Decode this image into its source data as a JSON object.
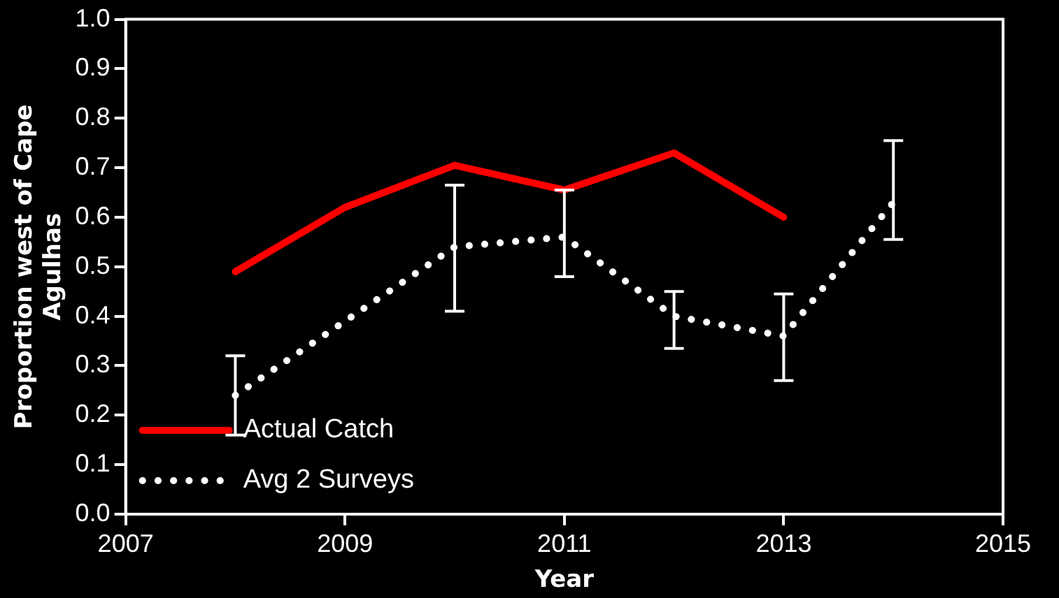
{
  "chart_data": {
    "type": "line",
    "xlabel": "Year",
    "ylabel": "Proportion west of Cape Agulhas",
    "xlim": [
      2007,
      2015
    ],
    "xticks": [
      2007,
      2009,
      2011,
      2013,
      2015
    ],
    "ylim": [
      0,
      1
    ],
    "yticks": [
      {
        "value": 0,
        "label": "0.0"
      },
      0.1,
      0.2,
      0.3,
      0.4,
      0.5,
      0.6,
      0.7,
      0.8,
      0.9,
      {
        "value": 1,
        "label": "1.0"
      }
    ],
    "grid": false,
    "legend": "bottom left",
    "marker": "none",
    "series": [
      {
        "name": "Actual Catch",
        "color": "#ff0000",
        "line_style": "solid",
        "x": [
          2008,
          2009,
          2010,
          2011,
          2012,
          2013
        ],
        "values": [
          0.49,
          0.62,
          0.705,
          0.655,
          0.73,
          0.6
        ]
      },
      {
        "name": "Avg 2 Surveys",
        "color": "#ffffff",
        "line_style": "dotted",
        "x": [
          2008,
          2009,
          2010,
          2011,
          2012,
          2013,
          2014
        ],
        "values": [
          0.24,
          0.39,
          0.54,
          0.56,
          0.4,
          0.36,
          0.63
        ],
        "errors": [
          [
            0.16,
            0.32
          ],
          null,
          [
            0.41,
            0.665
          ],
          [
            0.48,
            0.655
          ],
          [
            0.335,
            0.45
          ],
          [
            0.27,
            0.445
          ],
          [
            0.555,
            0.755
          ]
        ]
      }
    ]
  }
}
